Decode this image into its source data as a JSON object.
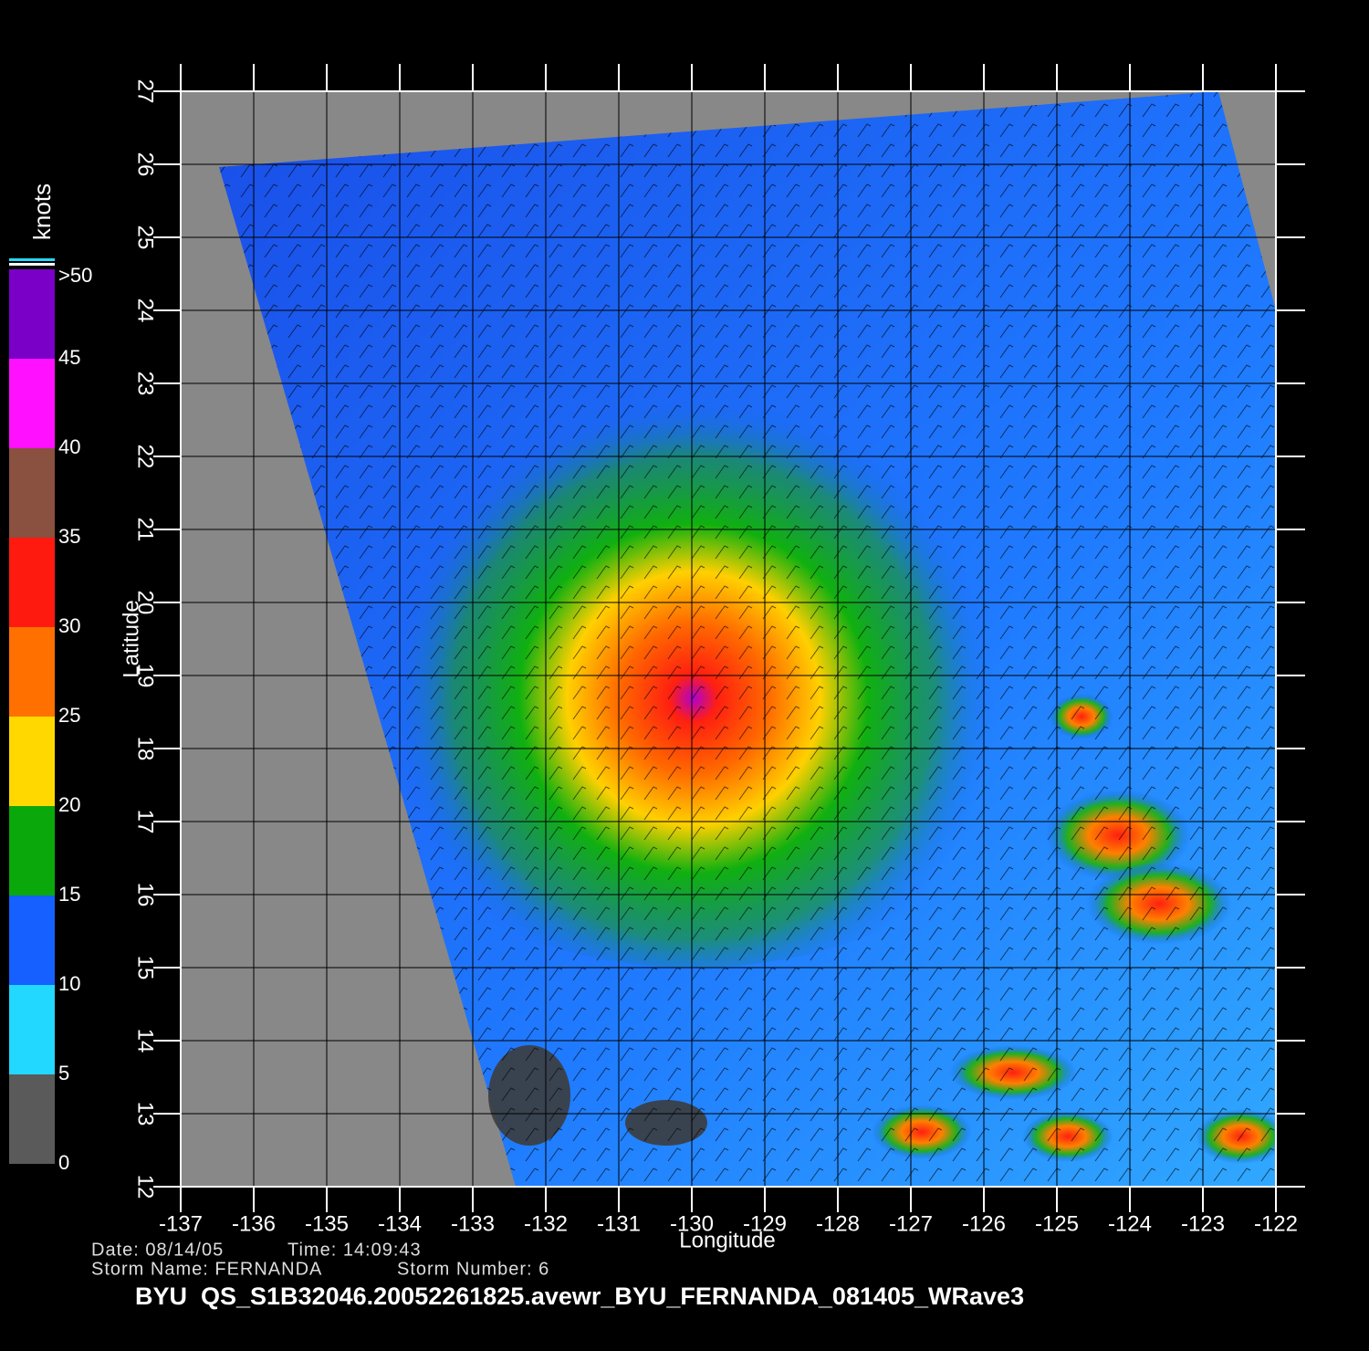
{
  "map": {
    "x_axis": {
      "label": "Longitude",
      "lim": [
        -137,
        -122
      ],
      "ticks": [
        -137,
        -136,
        -135,
        -134,
        -133,
        -132,
        -131,
        -130,
        -129,
        -128,
        -127,
        -126,
        -125,
        -124,
        -123,
        -122
      ]
    },
    "y_axis": {
      "label": "Latitude",
      "lim": [
        12,
        27
      ],
      "ticks": [
        12,
        13,
        14,
        15,
        16,
        17,
        18,
        19,
        20,
        21,
        22,
        23,
        24,
        25,
        26,
        27
      ]
    },
    "colorbar": {
      "label": "knots",
      "lim": [
        0,
        50
      ],
      "ticks": [
        0,
        5,
        10,
        15,
        20,
        25,
        30,
        35,
        40,
        45,
        {
          "value": 50,
          "label": ">50"
        }
      ],
      "colors": [
        "#5a5a5a",
        "#22d8ff",
        "#1560ff",
        "#0aa80a",
        "#ffd800",
        "#ff7000",
        "#ff1a10",
        "#8a5040",
        "#ff10ff",
        "#7a00c8"
      ]
    },
    "info": {
      "date": "Date: 08/14/05",
      "time": "Time: 14:09:43",
      "storm_name": "Storm Name: FERNANDA",
      "storm_number": "Storm Number: 6",
      "title": "BYU  QS_S1B32046.20052261825.avewr_BYU_FERNANDA_081405_WRave3"
    }
  }
}
